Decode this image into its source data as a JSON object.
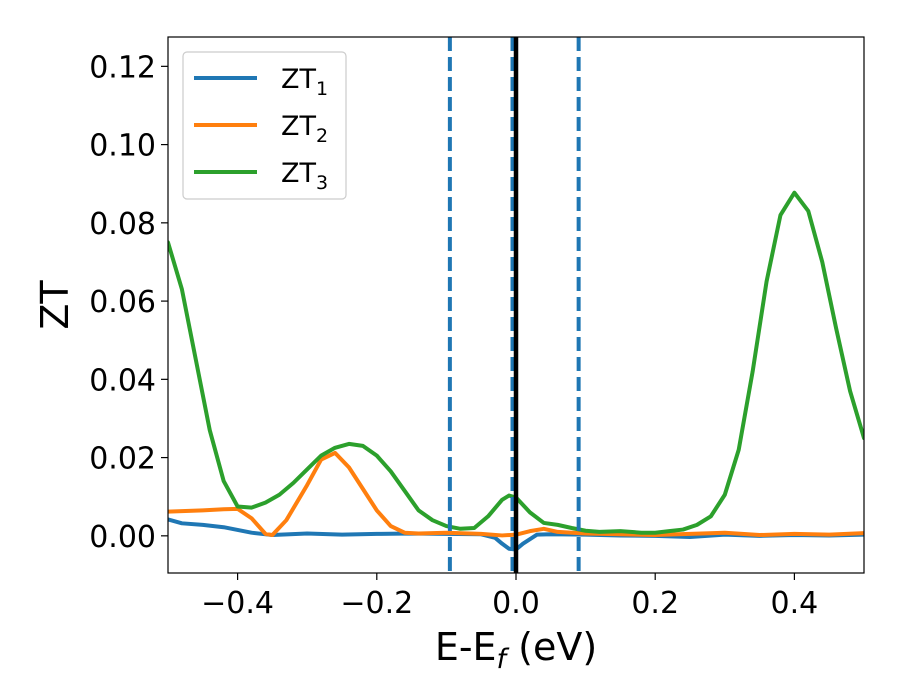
{
  "chart_data": {
    "type": "line",
    "title": "",
    "xlabel": "E-E",
    "xlabel_sub": "f",
    "xlabel_unit": " (eV)",
    "ylabel": "ZT",
    "xlim": [
      -0.5,
      0.5
    ],
    "ylim": [
      -0.0095,
      0.1275
    ],
    "xticks": [
      -0.4,
      -0.2,
      0.0,
      0.2,
      0.4
    ],
    "xtick_labels": [
      "−0.4",
      "−0.2",
      "0.0",
      "0.2",
      "0.4"
    ],
    "yticks": [
      0.0,
      0.02,
      0.04,
      0.06,
      0.08,
      0.1,
      0.12
    ],
    "ytick_labels": [
      "0.00",
      "0.02",
      "0.04",
      "0.06",
      "0.08",
      "0.10",
      "0.12"
    ],
    "grid": false,
    "legend_position": "upper-left",
    "vlines": [
      {
        "x": -0.095,
        "style": "dashed",
        "color": "#1f77b4"
      },
      {
        "x": -0.005,
        "style": "dashed",
        "color": "#1f77b4"
      },
      {
        "x": 0.09,
        "style": "dashed",
        "color": "#1f77b4"
      },
      {
        "x": 0.0,
        "style": "solid",
        "color": "#000000"
      }
    ],
    "series": [
      {
        "name": "ZT",
        "name_sub": "1",
        "color": "#1f77b4",
        "x": [
          -0.5,
          -0.48,
          -0.45,
          -0.42,
          -0.4,
          -0.38,
          -0.35,
          -0.3,
          -0.25,
          -0.2,
          -0.15,
          -0.1,
          -0.05,
          -0.03,
          -0.02,
          -0.01,
          0.0,
          0.01,
          0.03,
          0.05,
          0.1,
          0.15,
          0.2,
          0.25,
          0.3,
          0.35,
          0.4,
          0.45,
          0.5
        ],
        "y": [
          0.0042,
          0.0032,
          0.0028,
          0.0022,
          0.0015,
          0.0008,
          0.0002,
          0.0006,
          0.0003,
          0.0005,
          0.0006,
          0.0005,
          0.0004,
          -0.0005,
          -0.002,
          -0.0033,
          -0.0035,
          -0.002,
          0.0003,
          0.0004,
          0.0003,
          0.0001,
          0.0,
          -0.0003,
          0.0003,
          0.0,
          0.0002,
          0.0001,
          0.0003
        ]
      },
      {
        "name": "ZT",
        "name_sub": "2",
        "color": "#ff7f0e",
        "x": [
          -0.5,
          -0.45,
          -0.42,
          -0.4,
          -0.38,
          -0.36,
          -0.35,
          -0.33,
          -0.3,
          -0.28,
          -0.26,
          -0.24,
          -0.22,
          -0.2,
          -0.18,
          -0.16,
          -0.14,
          -0.1,
          -0.05,
          -0.02,
          0.0,
          0.02,
          0.04,
          0.06,
          0.1,
          0.15,
          0.2,
          0.25,
          0.3,
          0.35,
          0.4,
          0.45,
          0.5
        ],
        "y": [
          0.0062,
          0.0065,
          0.0068,
          0.0069,
          0.0045,
          0.0005,
          0.0002,
          0.004,
          0.013,
          0.0195,
          0.0212,
          0.0175,
          0.012,
          0.0065,
          0.0025,
          0.0008,
          0.0006,
          0.0008,
          0.0005,
          0.0001,
          0.0003,
          0.0012,
          0.0018,
          0.001,
          0.0006,
          0.0004,
          0.0002,
          0.0005,
          0.0008,
          0.0002,
          0.0005,
          0.0003,
          0.0007
        ]
      },
      {
        "name": "ZT",
        "name_sub": "3",
        "color": "#2ca02c",
        "x": [
          -0.5,
          -0.48,
          -0.46,
          -0.44,
          -0.42,
          -0.4,
          -0.38,
          -0.36,
          -0.34,
          -0.32,
          -0.3,
          -0.28,
          -0.26,
          -0.24,
          -0.22,
          -0.2,
          -0.18,
          -0.16,
          -0.14,
          -0.12,
          -0.1,
          -0.08,
          -0.06,
          -0.04,
          -0.02,
          -0.01,
          0.0,
          0.02,
          0.04,
          0.06,
          0.08,
          0.1,
          0.12,
          0.15,
          0.18,
          0.2,
          0.22,
          0.24,
          0.26,
          0.28,
          0.3,
          0.32,
          0.34,
          0.36,
          0.38,
          0.4,
          0.42,
          0.44,
          0.46,
          0.48,
          0.5
        ],
        "y": [
          0.075,
          0.063,
          0.045,
          0.027,
          0.014,
          0.0075,
          0.0072,
          0.0085,
          0.0105,
          0.0135,
          0.017,
          0.0205,
          0.0225,
          0.0235,
          0.023,
          0.0205,
          0.0165,
          0.0115,
          0.0065,
          0.004,
          0.0025,
          0.0018,
          0.002,
          0.005,
          0.0092,
          0.0103,
          0.0098,
          0.006,
          0.0033,
          0.0028,
          0.002,
          0.0013,
          0.001,
          0.0012,
          0.0008,
          0.0008,
          0.0012,
          0.0016,
          0.0028,
          0.005,
          0.0105,
          0.022,
          0.042,
          0.065,
          0.082,
          0.0877,
          0.083,
          0.07,
          0.053,
          0.037,
          0.025
        ]
      }
    ]
  }
}
